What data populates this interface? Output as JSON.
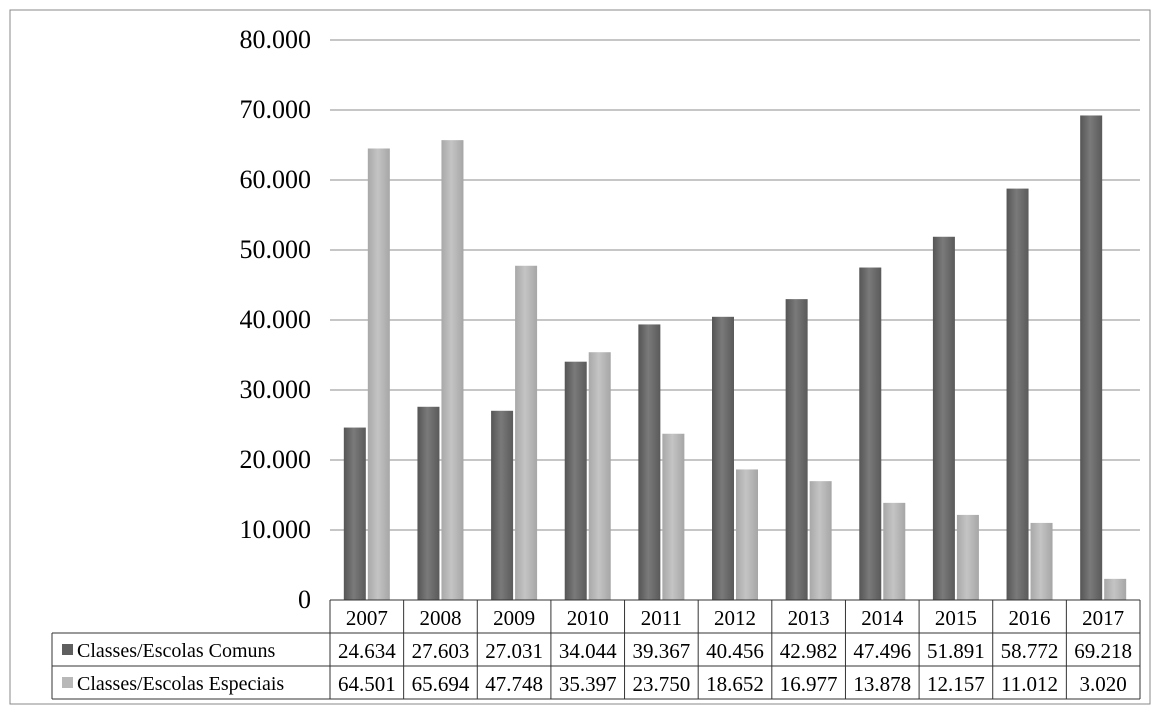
{
  "chart_data": {
    "type": "bar",
    "categories": [
      "2007",
      "2008",
      "2009",
      "2010",
      "2011",
      "2012",
      "2013",
      "2014",
      "2015",
      "2016",
      "2017"
    ],
    "series": [
      {
        "name": "Classes/Escolas Comuns",
        "values": [
          24634,
          27603,
          27031,
          34044,
          39367,
          40456,
          42982,
          47496,
          51891,
          58772,
          69218
        ],
        "value_labels": [
          "24.634",
          "27.603",
          "27.031",
          "34.044",
          "39.367",
          "40.456",
          "42.982",
          "47.496",
          "51.891",
          "58.772",
          "69.218"
        ],
        "color": "#6b6b6b"
      },
      {
        "name": "Classes/Escolas Especiais",
        "values": [
          64501,
          65694,
          47748,
          35397,
          23750,
          18652,
          16977,
          13878,
          12157,
          11012,
          3020
        ],
        "value_labels": [
          "64.501",
          "65.694",
          "47.748",
          "35.397",
          "23.750",
          "18.652",
          "16.977",
          "13.878",
          "12.157",
          "11.012",
          "3.020"
        ],
        "color": "#b5b5b5"
      }
    ],
    "ylim": [
      0,
      80000
    ],
    "yticks": [
      0,
      10000,
      20000,
      30000,
      40000,
      50000,
      60000,
      70000,
      80000
    ],
    "ytick_labels": [
      "0",
      "10.000",
      "20.000",
      "30.000",
      "40.000",
      "50.000",
      "60.000",
      "70.000",
      "80.000"
    ],
    "grid": true,
    "legend": "data-table",
    "title": "",
    "xlabel": "",
    "ylabel": ""
  }
}
